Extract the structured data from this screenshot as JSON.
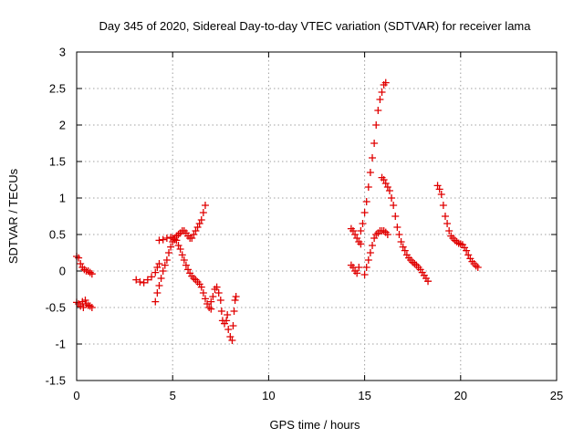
{
  "chart_data": {
    "type": "scatter",
    "title": "Day 345 of 2020, Sidereal Day-to-day VTEC variation (SDTVAR) for receiver lama",
    "xlabel": "GPS time / hours",
    "ylabel": "SDTVAR / TECUs",
    "xlim": [
      0,
      25
    ],
    "ylim": [
      -1.5,
      3
    ],
    "xticks": [
      0,
      5,
      10,
      15,
      20,
      25
    ],
    "xtick_labels": [
      "0",
      "5",
      "10",
      "15",
      "20",
      "25"
    ],
    "yticks": [
      -1.5,
      -1,
      -0.5,
      0,
      0.5,
      1,
      1.5,
      2,
      2.5,
      3
    ],
    "ytick_labels": [
      "-1.5",
      "-1",
      "-0.5",
      "0",
      "0.5",
      "1",
      "1.5",
      "2",
      "2.5",
      "3"
    ],
    "grid": true,
    "marker": "+",
    "color": "#e00000",
    "segments": [
      {
        "name": "arc-01",
        "points": [
          [
            0.0,
            0.2
          ],
          [
            0.1,
            0.18
          ],
          [
            0.2,
            0.1
          ],
          [
            0.3,
            0.05
          ],
          [
            0.4,
            0.02
          ],
          [
            0.5,
            0.0
          ],
          [
            0.6,
            0.0
          ],
          [
            0.7,
            -0.02
          ],
          [
            0.8,
            -0.04
          ]
        ]
      },
      {
        "name": "arc-02",
        "points": [
          [
            0.0,
            -0.43
          ],
          [
            0.1,
            -0.45
          ],
          [
            0.2,
            -0.48
          ],
          [
            0.3,
            -0.42
          ],
          [
            0.35,
            -0.5
          ],
          [
            0.45,
            -0.4
          ],
          [
            0.5,
            -0.45
          ],
          [
            0.6,
            -0.47
          ],
          [
            0.7,
            -0.48
          ],
          [
            0.8,
            -0.5
          ]
        ]
      },
      {
        "name": "arc-03",
        "points": [
          [
            3.1,
            -0.12
          ],
          [
            3.3,
            -0.15
          ],
          [
            3.5,
            -0.16
          ],
          [
            3.7,
            -0.12
          ],
          [
            3.9,
            -0.08
          ],
          [
            4.1,
            -0.02
          ],
          [
            4.2,
            0.05
          ],
          [
            4.3,
            0.1
          ]
        ]
      },
      {
        "name": "arc-04",
        "points": [
          [
            4.1,
            -0.42
          ],
          [
            4.2,
            -0.3
          ],
          [
            4.3,
            -0.2
          ],
          [
            4.4,
            -0.1
          ],
          [
            4.5,
            0.0
          ],
          [
            4.6,
            0.08
          ],
          [
            4.7,
            0.15
          ],
          [
            4.8,
            0.25
          ],
          [
            4.9,
            0.33
          ],
          [
            5.0,
            0.4
          ],
          [
            5.1,
            0.45
          ],
          [
            5.2,
            0.48
          ],
          [
            5.3,
            0.5
          ],
          [
            5.4,
            0.52
          ],
          [
            5.5,
            0.55
          ],
          [
            5.6,
            0.55
          ],
          [
            5.7,
            0.52
          ],
          [
            5.8,
            0.48
          ],
          [
            5.9,
            0.45
          ],
          [
            6.0,
            0.45
          ],
          [
            6.1,
            0.5
          ],
          [
            6.2,
            0.55
          ],
          [
            6.3,
            0.6
          ],
          [
            6.4,
            0.65
          ],
          [
            6.5,
            0.7
          ],
          [
            6.6,
            0.8
          ],
          [
            6.7,
            0.9
          ]
        ]
      },
      {
        "name": "arc-05",
        "points": [
          [
            4.3,
            0.42
          ],
          [
            4.5,
            0.43
          ],
          [
            4.7,
            0.45
          ],
          [
            4.9,
            0.46
          ],
          [
            5.0,
            0.45
          ],
          [
            5.1,
            0.43
          ],
          [
            5.2,
            0.42
          ],
          [
            5.3,
            0.35
          ],
          [
            5.4,
            0.3
          ],
          [
            5.5,
            0.22
          ],
          [
            5.6,
            0.15
          ],
          [
            5.7,
            0.08
          ],
          [
            5.8,
            0.02
          ],
          [
            5.9,
            -0.03
          ],
          [
            6.0,
            -0.07
          ],
          [
            6.1,
            -0.1
          ],
          [
            6.2,
            -0.12
          ],
          [
            6.3,
            -0.15
          ],
          [
            6.4,
            -0.18
          ],
          [
            6.5,
            -0.22
          ],
          [
            6.6,
            -0.3
          ],
          [
            6.7,
            -0.38
          ],
          [
            6.8,
            -0.45
          ],
          [
            6.9,
            -0.5
          ],
          [
            7.0,
            -0.52
          ]
        ]
      },
      {
        "name": "arc-06",
        "points": [
          [
            7.0,
            -0.42
          ],
          [
            7.1,
            -0.35
          ],
          [
            7.2,
            -0.25
          ],
          [
            7.3,
            -0.22
          ],
          [
            7.4,
            -0.3
          ],
          [
            7.5,
            -0.4
          ],
          [
            7.55,
            -0.55
          ],
          [
            7.6,
            -0.68
          ],
          [
            7.7,
            -0.72
          ],
          [
            7.8,
            -0.68
          ],
          [
            7.85,
            -0.6
          ],
          [
            7.9,
            -0.8
          ],
          [
            8.0,
            -0.9
          ],
          [
            8.1,
            -0.95
          ],
          [
            8.15,
            -0.75
          ],
          [
            8.2,
            -0.55
          ],
          [
            8.25,
            -0.4
          ],
          [
            8.3,
            -0.35
          ]
        ]
      },
      {
        "name": "arc-07",
        "points": [
          [
            14.3,
            0.58
          ],
          [
            14.4,
            0.55
          ],
          [
            14.5,
            0.5
          ],
          [
            14.6,
            0.45
          ],
          [
            14.7,
            0.4
          ],
          [
            14.8,
            0.37
          ]
        ]
      },
      {
        "name": "arc-08",
        "points": [
          [
            14.3,
            0.08
          ],
          [
            14.4,
            0.05
          ],
          [
            14.5,
            0.0
          ],
          [
            14.6,
            -0.03
          ],
          [
            14.7,
            0.05
          ]
        ]
      },
      {
        "name": "arc-09",
        "points": [
          [
            14.8,
            0.55
          ],
          [
            14.9,
            0.65
          ],
          [
            15.0,
            0.8
          ],
          [
            15.1,
            0.95
          ],
          [
            15.2,
            1.15
          ],
          [
            15.3,
            1.35
          ],
          [
            15.4,
            1.55
          ],
          [
            15.5,
            1.75
          ],
          [
            15.6,
            2.0
          ],
          [
            15.7,
            2.2
          ],
          [
            15.8,
            2.35
          ],
          [
            15.9,
            2.45
          ],
          [
            16.0,
            2.55
          ],
          [
            16.1,
            2.58
          ]
        ]
      },
      {
        "name": "arc-10",
        "points": [
          [
            15.0,
            -0.05
          ],
          [
            15.1,
            0.05
          ],
          [
            15.2,
            0.15
          ],
          [
            15.3,
            0.25
          ],
          [
            15.4,
            0.35
          ],
          [
            15.5,
            0.45
          ],
          [
            15.6,
            0.5
          ],
          [
            15.7,
            0.52
          ],
          [
            15.8,
            0.55
          ],
          [
            15.9,
            0.55
          ],
          [
            16.0,
            0.55
          ],
          [
            16.1,
            0.53
          ],
          [
            16.2,
            0.5
          ]
        ]
      },
      {
        "name": "arc-11",
        "points": [
          [
            15.9,
            1.28
          ],
          [
            16.0,
            1.25
          ],
          [
            16.1,
            1.2
          ],
          [
            16.2,
            1.15
          ],
          [
            16.3,
            1.1
          ],
          [
            16.4,
            1.0
          ],
          [
            16.5,
            0.9
          ],
          [
            16.6,
            0.75
          ],
          [
            16.7,
            0.6
          ],
          [
            16.8,
            0.5
          ],
          [
            16.9,
            0.4
          ],
          [
            17.0,
            0.33
          ],
          [
            17.1,
            0.28
          ],
          [
            17.2,
            0.22
          ],
          [
            17.3,
            0.18
          ],
          [
            17.4,
            0.15
          ],
          [
            17.5,
            0.12
          ],
          [
            17.6,
            0.1
          ],
          [
            17.7,
            0.08
          ],
          [
            17.8,
            0.05
          ],
          [
            17.9,
            0.02
          ],
          [
            18.0,
            -0.02
          ],
          [
            18.1,
            -0.06
          ],
          [
            18.2,
            -0.1
          ],
          [
            18.3,
            -0.14
          ]
        ]
      },
      {
        "name": "arc-12",
        "points": [
          [
            18.8,
            1.17
          ],
          [
            18.9,
            1.12
          ],
          [
            19.0,
            1.05
          ],
          [
            19.1,
            0.9
          ],
          [
            19.2,
            0.75
          ],
          [
            19.3,
            0.65
          ],
          [
            19.4,
            0.55
          ],
          [
            19.5,
            0.48
          ],
          [
            19.6,
            0.45
          ],
          [
            19.7,
            0.42
          ],
          [
            19.8,
            0.4
          ],
          [
            19.9,
            0.38
          ],
          [
            20.0,
            0.37
          ],
          [
            20.1,
            0.36
          ],
          [
            20.2,
            0.32
          ],
          [
            20.3,
            0.28
          ],
          [
            20.4,
            0.22
          ],
          [
            20.5,
            0.17
          ],
          [
            20.6,
            0.13
          ],
          [
            20.7,
            0.1
          ],
          [
            20.8,
            0.07
          ],
          [
            20.9,
            0.05
          ]
        ]
      }
    ]
  }
}
